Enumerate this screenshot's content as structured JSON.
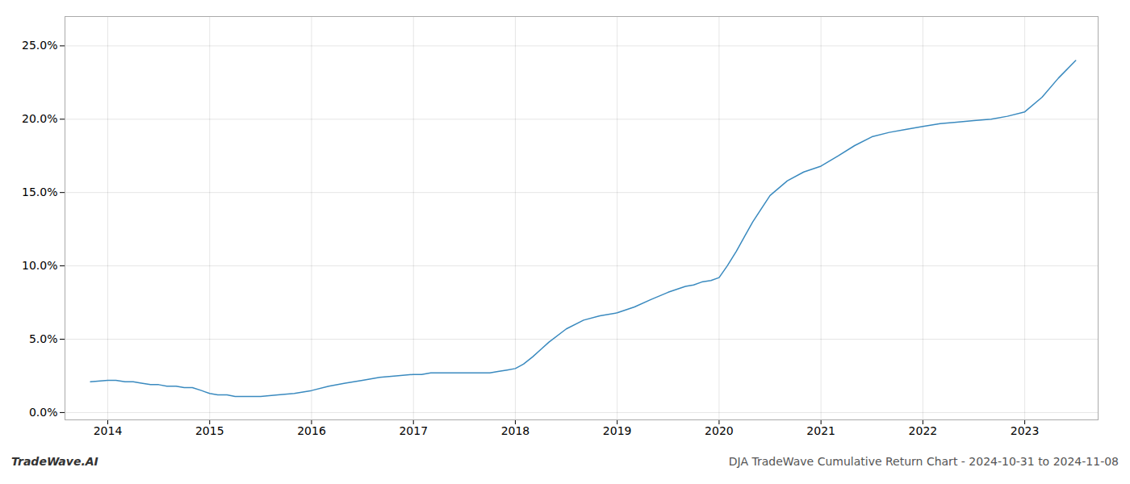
{
  "chart_data": {
    "type": "line",
    "color": "#3a8abf",
    "x": [
      2013.83,
      2014.0,
      2014.08,
      2014.17,
      2014.25,
      2014.33,
      2014.42,
      2014.5,
      2014.58,
      2014.67,
      2014.75,
      2014.83,
      2014.92,
      2015.0,
      2015.08,
      2015.17,
      2015.25,
      2015.33,
      2015.5,
      2015.67,
      2015.83,
      2016.0,
      2016.17,
      2016.33,
      2016.5,
      2016.67,
      2016.83,
      2017.0,
      2017.08,
      2017.17,
      2017.25,
      2017.33,
      2017.42,
      2017.5,
      2017.58,
      2017.67,
      2017.75,
      2017.83,
      2017.92,
      2018.0,
      2018.08,
      2018.17,
      2018.25,
      2018.33,
      2018.5,
      2018.67,
      2018.83,
      2019.0,
      2019.17,
      2019.33,
      2019.5,
      2019.67,
      2019.75,
      2019.83,
      2019.92,
      2020.0,
      2020.08,
      2020.17,
      2020.25,
      2020.33,
      2020.5,
      2020.67,
      2020.83,
      2021.0,
      2021.17,
      2021.33,
      2021.5,
      2021.67,
      2021.83,
      2022.0,
      2022.17,
      2022.33,
      2022.5,
      2022.67,
      2022.83,
      2023.0,
      2023.17,
      2023.33,
      2023.5
    ],
    "values": [
      0.021,
      0.022,
      0.022,
      0.021,
      0.021,
      0.02,
      0.019,
      0.019,
      0.018,
      0.018,
      0.017,
      0.017,
      0.015,
      0.013,
      0.012,
      0.012,
      0.011,
      0.011,
      0.011,
      0.012,
      0.013,
      0.015,
      0.018,
      0.02,
      0.022,
      0.024,
      0.025,
      0.026,
      0.026,
      0.027,
      0.027,
      0.027,
      0.027,
      0.027,
      0.027,
      0.027,
      0.027,
      0.028,
      0.029,
      0.03,
      0.033,
      0.038,
      0.043,
      0.048,
      0.057,
      0.063,
      0.066,
      0.068,
      0.072,
      0.077,
      0.082,
      0.086,
      0.087,
      0.089,
      0.09,
      0.092,
      0.1,
      0.11,
      0.12,
      0.13,
      0.148,
      0.158,
      0.164,
      0.168,
      0.175,
      0.182,
      0.188,
      0.191,
      0.193,
      0.195,
      0.197,
      0.198,
      0.199,
      0.2,
      0.202,
      0.205,
      0.215,
      0.228,
      0.24
    ],
    "xlim": [
      2013.58,
      2023.72
    ],
    "xticks": [
      2014,
      2015,
      2016,
      2017,
      2018,
      2019,
      2020,
      2021,
      2022,
      2023
    ],
    "ylim": [
      -0.005,
      0.27
    ],
    "yticks": [
      {
        "value": 0.0,
        "label": "0.0%"
      },
      {
        "value": 0.05,
        "label": "5.0%"
      },
      {
        "value": 0.1,
        "label": "10.0%"
      },
      {
        "value": 0.15,
        "label": "15.0%"
      },
      {
        "value": 0.2,
        "label": "20.0%"
      },
      {
        "value": 0.25,
        "label": "25.0%"
      }
    ],
    "grid": true,
    "annotations": [
      "TradeWave.AI",
      "DJA TradeWave Cumulative Return Chart - 2024-10-31 to 2024-11-08"
    ]
  }
}
